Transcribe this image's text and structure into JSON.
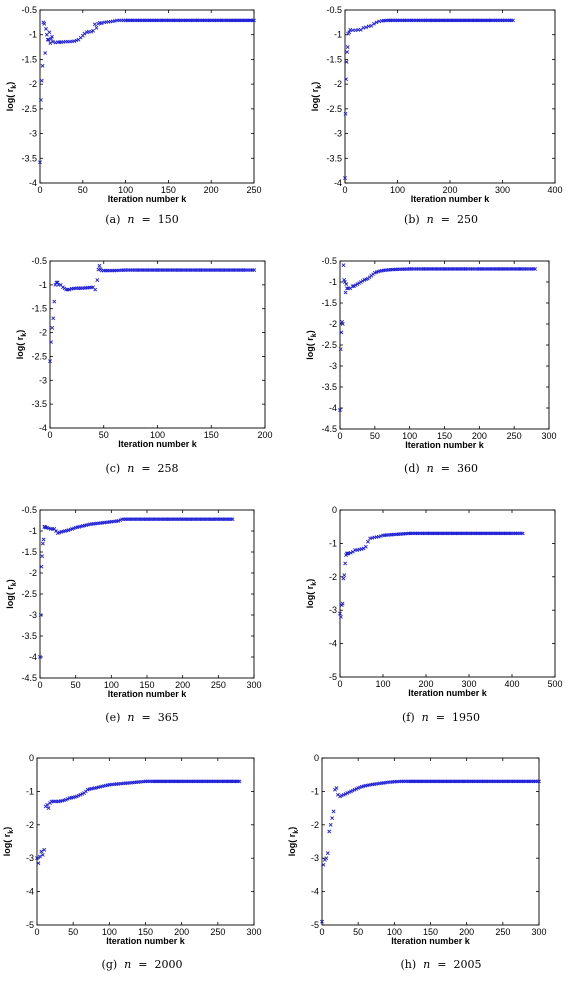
{
  "chart_data": [
    {
      "type": "scatter",
      "caption_label": "(a)",
      "caption_var": "n",
      "caption_eq": "=",
      "caption_value": "150",
      "xlabel": "Iteration number k",
      "ylabel": "log( r",
      "ylabel_sub": "k",
      "ylabel_close": ")",
      "xlim": [
        0,
        250
      ],
      "ylim": [
        -4,
        -0.5
      ],
      "xticks": [
        0,
        50,
        100,
        150,
        200,
        250
      ],
      "yticks": [
        -4,
        -3.5,
        -3,
        -2.5,
        -2,
        -1.5,
        -1,
        -0.5
      ],
      "grid": false,
      "marker": "x",
      "color": "#1f1fd6",
      "series": [
        {
          "x": [
            0,
            1,
            2,
            3,
            4,
            5,
            6,
            7,
            8,
            9,
            10,
            11,
            12,
            13,
            14,
            15,
            18,
            21,
            25,
            30,
            35,
            40,
            45,
            50,
            52,
            55,
            57,
            60,
            62,
            64,
            66,
            68,
            70,
            72,
            75,
            80,
            85,
            90,
            95,
            100,
            110,
            120,
            140,
            160,
            180,
            200,
            220,
            250
          ],
          "y": [
            -3.58,
            -2.32,
            -1.93,
            -1.63,
            -0.75,
            -0.78,
            -1.37,
            -0.88,
            -1.0,
            -1.1,
            -1.1,
            -0.95,
            -1.17,
            -1.08,
            -1.04,
            -1.14,
            -1.16,
            -1.15,
            -1.15,
            -1.14,
            -1.14,
            -1.13,
            -1.1,
            -1.02,
            -0.98,
            -0.95,
            -0.94,
            -0.94,
            -0.92,
            -0.79,
            -0.86,
            -0.78,
            -0.76,
            -0.77,
            -0.75,
            -0.74,
            -0.73,
            -0.71,
            -0.71,
            -0.71,
            -0.71,
            -0.71,
            -0.71,
            -0.71,
            -0.71,
            -0.71,
            -0.71,
            -0.71
          ]
        }
      ]
    },
    {
      "type": "scatter",
      "caption_label": "(b)",
      "caption_var": "n",
      "caption_eq": "=",
      "caption_value": "250",
      "xlabel": "Iteration number k",
      "ylabel": "log( r",
      "ylabel_sub": "k",
      "ylabel_close": ")",
      "xlim": [
        0,
        400
      ],
      "ylim": [
        -4,
        -0.5
      ],
      "xticks": [
        0,
        100,
        200,
        300,
        400
      ],
      "yticks": [
        -4,
        -3.5,
        -3,
        -2.5,
        -2,
        -1.5,
        -1,
        -0.5
      ],
      "grid": false,
      "marker": "x",
      "color": "#1f1fd6",
      "series": [
        {
          "x": [
            0,
            1,
            2,
            3,
            4,
            5,
            6,
            8,
            10,
            15,
            20,
            25,
            30,
            35,
            40,
            45,
            50,
            55,
            60,
            65,
            70,
            80,
            100,
            130,
            160,
            200,
            240,
            280,
            300,
            320
          ],
          "y": [
            -3.9,
            -2.6,
            -1.9,
            -1.55,
            -1.35,
            -1.25,
            -0.98,
            -0.95,
            -0.9,
            -0.91,
            -0.91,
            -0.9,
            -0.9,
            -0.86,
            -0.85,
            -0.83,
            -0.82,
            -0.78,
            -0.75,
            -0.73,
            -0.72,
            -0.71,
            -0.71,
            -0.71,
            -0.71,
            -0.71,
            -0.71,
            -0.71,
            -0.71,
            -0.71
          ]
        }
      ]
    },
    {
      "type": "scatter",
      "caption_label": "(c)",
      "caption_var": "n",
      "caption_eq": "=",
      "caption_value": "258",
      "xlabel": "Iteration number k",
      "ylabel": "log( r",
      "ylabel_sub": "k",
      "ylabel_close": ")",
      "xlim": [
        0,
        200
      ],
      "ylim": [
        -4,
        -0.5
      ],
      "xticks": [
        0,
        50,
        100,
        150,
        200
      ],
      "yticks": [
        -4,
        -3.5,
        -3,
        -2.5,
        -2,
        -1.5,
        -1,
        -0.5
      ],
      "grid": false,
      "marker": "x",
      "color": "#1f1fd6",
      "series": [
        {
          "x": [
            0,
            1,
            2,
            3,
            4,
            5,
            6,
            7,
            8,
            10,
            12,
            15,
            18,
            20,
            25,
            30,
            35,
            40,
            42,
            44,
            45,
            46,
            47,
            48,
            50,
            55,
            60,
            70,
            80,
            100,
            120,
            140,
            160,
            180,
            190
          ],
          "y": [
            -2.6,
            -2.2,
            -1.9,
            -1.7,
            -1.35,
            -1.0,
            -0.95,
            -0.95,
            -1.0,
            -1.0,
            -1.05,
            -1.1,
            -1.1,
            -1.08,
            -1.07,
            -1.07,
            -1.06,
            -1.05,
            -1.1,
            -0.9,
            -0.68,
            -0.6,
            -0.67,
            -0.7,
            -0.7,
            -0.7,
            -0.7,
            -0.69,
            -0.69,
            -0.69,
            -0.69,
            -0.69,
            -0.69,
            -0.69,
            -0.69
          ]
        }
      ]
    },
    {
      "type": "scatter",
      "caption_label": "(d)",
      "caption_var": "n",
      "caption_eq": "=",
      "caption_value": "360",
      "xlabel": "Iteration number k",
      "ylabel": "log( r",
      "ylabel_sub": "k",
      "ylabel_close": ")",
      "xlim": [
        0,
        300
      ],
      "ylim": [
        -4.5,
        -0.5
      ],
      "xticks": [
        0,
        50,
        100,
        150,
        200,
        250,
        300
      ],
      "yticks": [
        -4.5,
        -4,
        -3.5,
        -3,
        -2.5,
        -2,
        -1.5,
        -1,
        -0.5
      ],
      "grid": false,
      "marker": "x",
      "color": "#1f1fd6",
      "series": [
        {
          "x": [
            0,
            1,
            2,
            3,
            4,
            5,
            6,
            7,
            8,
            9,
            10,
            12,
            15,
            18,
            20,
            25,
            30,
            35,
            40,
            45,
            50,
            55,
            60,
            70,
            80,
            100,
            120,
            150,
            180,
            200,
            230,
            260,
            280
          ],
          "y": [
            -4.05,
            -2.6,
            -2.2,
            -1.95,
            -2.0,
            -0.6,
            -0.95,
            -1.0,
            -1.25,
            -1.05,
            -1.15,
            -1.15,
            -1.15,
            -1.1,
            -1.1,
            -1.05,
            -1.0,
            -0.95,
            -0.92,
            -0.85,
            -0.78,
            -0.75,
            -0.73,
            -0.71,
            -0.7,
            -0.69,
            -0.69,
            -0.69,
            -0.69,
            -0.69,
            -0.69,
            -0.69,
            -0.69
          ]
        }
      ]
    },
    {
      "type": "scatter",
      "caption_label": "(e)",
      "caption_var": "n",
      "caption_eq": "=",
      "caption_value": "365",
      "xlabel": "Iteration number k",
      "ylabel": "log( r",
      "ylabel_sub": "k",
      "ylabel_close": ")",
      "xlim": [
        0,
        300
      ],
      "ylim": [
        -4.5,
        -0.5
      ],
      "xticks": [
        0,
        50,
        100,
        150,
        200,
        250,
        300
      ],
      "yticks": [
        -4.5,
        -4,
        -3.5,
        -3,
        -2.5,
        -2,
        -1.5,
        -1,
        -0.5
      ],
      "grid": false,
      "marker": "x",
      "color": "#1f1fd6",
      "series": [
        {
          "x": [
            0,
            1,
            2,
            3,
            4,
            5,
            6,
            7,
            8,
            10,
            15,
            20,
            25,
            30,
            35,
            40,
            45,
            50,
            55,
            60,
            65,
            70,
            80,
            90,
            100,
            110,
            115,
            120,
            150,
            180,
            210,
            240,
            270
          ],
          "y": [
            -4.0,
            -3.0,
            -1.85,
            -1.6,
            -1.3,
            -1.2,
            -0.9,
            -0.9,
            -0.92,
            -0.92,
            -0.95,
            -0.95,
            -1.05,
            -1.02,
            -1.0,
            -0.98,
            -0.95,
            -0.92,
            -0.9,
            -0.88,
            -0.86,
            -0.84,
            -0.82,
            -0.8,
            -0.78,
            -0.76,
            -0.72,
            -0.72,
            -0.72,
            -0.72,
            -0.72,
            -0.72,
            -0.72
          ]
        }
      ]
    },
    {
      "type": "scatter",
      "caption_label": "(f)",
      "caption_var": "n",
      "caption_eq": "=",
      "caption_value": "1950",
      "xlabel": "Iteration number k",
      "ylabel": "log( r",
      "ylabel_sub": "k",
      "ylabel_close": ")",
      "xlim": [
        0,
        500
      ],
      "ylim": [
        -5,
        0
      ],
      "xticks": [
        0,
        100,
        200,
        300,
        400,
        500
      ],
      "yticks": [
        -5,
        -4,
        -3,
        -2,
        -1,
        0
      ],
      "grid": false,
      "marker": "x",
      "color": "#1f1fd6",
      "series": [
        {
          "x": [
            0,
            2,
            4,
            6,
            8,
            10,
            12,
            14,
            16,
            18,
            20,
            25,
            30,
            35,
            40,
            45,
            50,
            55,
            60,
            65,
            70,
            80,
            90,
            100,
            120,
            140,
            160,
            200,
            250,
            300,
            350,
            400,
            425
          ],
          "y": [
            -3.1,
            -3.2,
            -2.85,
            -2.8,
            -2.05,
            -1.95,
            -1.6,
            -1.35,
            -1.3,
            -1.3,
            -1.3,
            -1.28,
            -1.25,
            -1.2,
            -1.2,
            -1.18,
            -1.17,
            -1.15,
            -1.1,
            -0.95,
            -0.85,
            -0.82,
            -0.8,
            -0.76,
            -0.74,
            -0.72,
            -0.7,
            -0.7,
            -0.7,
            -0.7,
            -0.7,
            -0.7,
            -0.7
          ]
        }
      ]
    },
    {
      "type": "scatter",
      "caption_label": "(g)",
      "caption_var": "n",
      "caption_eq": "=",
      "caption_value": "2000",
      "xlabel": "Iteration number k",
      "ylabel": "log( r",
      "ylabel_sub": "k",
      "ylabel_close": ")",
      "xlim": [
        0,
        300
      ],
      "ylim": [
        -5,
        0
      ],
      "xticks": [
        0,
        50,
        100,
        150,
        200,
        250,
        300
      ],
      "yticks": [
        -5,
        -4,
        -3,
        -2,
        -1,
        0
      ],
      "grid": false,
      "marker": "x",
      "color": "#1f1fd6",
      "series": [
        {
          "x": [
            0,
            2,
            4,
            6,
            8,
            10,
            12,
            14,
            16,
            18,
            20,
            25,
            30,
            35,
            40,
            45,
            50,
            55,
            60,
            65,
            70,
            75,
            80,
            90,
            100,
            110,
            120,
            130,
            140,
            150,
            160,
            180,
            200,
            230,
            260,
            280
          ],
          "y": [
            -3.0,
            -3.15,
            -2.95,
            -2.8,
            -2.9,
            -2.75,
            -1.45,
            -1.4,
            -1.5,
            -1.35,
            -1.3,
            -1.3,
            -1.3,
            -1.28,
            -1.25,
            -1.2,
            -1.18,
            -1.15,
            -1.1,
            -1.05,
            -0.95,
            -0.92,
            -0.9,
            -0.85,
            -0.8,
            -0.78,
            -0.76,
            -0.74,
            -0.72,
            -0.7,
            -0.7,
            -0.7,
            -0.7,
            -0.7,
            -0.7,
            -0.7
          ]
        }
      ]
    },
    {
      "type": "scatter",
      "caption_label": "(h)",
      "caption_var": "n",
      "caption_eq": "=",
      "caption_value": "2005",
      "xlabel": "Iteration number k",
      "ylabel": "log( r",
      "ylabel_sub": "k",
      "ylabel_close": ")",
      "xlim": [
        0,
        300
      ],
      "ylim": [
        -5,
        0
      ],
      "xticks": [
        0,
        50,
        100,
        150,
        200,
        250,
        300
      ],
      "yticks": [
        -5,
        -4,
        -3,
        -2,
        -1,
        0
      ],
      "grid": false,
      "marker": "x",
      "color": "#1f1fd6",
      "series": [
        {
          "x": [
            0,
            2,
            4,
            6,
            8,
            10,
            12,
            14,
            16,
            18,
            20,
            22,
            25,
            30,
            35,
            40,
            45,
            50,
            55,
            60,
            70,
            80,
            90,
            100,
            110,
            120,
            140,
            160,
            180,
            200,
            230,
            260,
            290,
            300
          ],
          "y": [
            -4.9,
            -3.2,
            -3.05,
            -3.0,
            -2.85,
            -2.2,
            -2.0,
            -1.8,
            -1.6,
            -0.95,
            -0.9,
            -1.1,
            -1.15,
            -1.1,
            -1.05,
            -1.0,
            -0.95,
            -0.9,
            -0.86,
            -0.83,
            -0.79,
            -0.76,
            -0.73,
            -0.71,
            -0.7,
            -0.7,
            -0.7,
            -0.7,
            -0.7,
            -0.7,
            -0.7,
            -0.7,
            -0.7,
            -0.7
          ]
        }
      ]
    }
  ]
}
